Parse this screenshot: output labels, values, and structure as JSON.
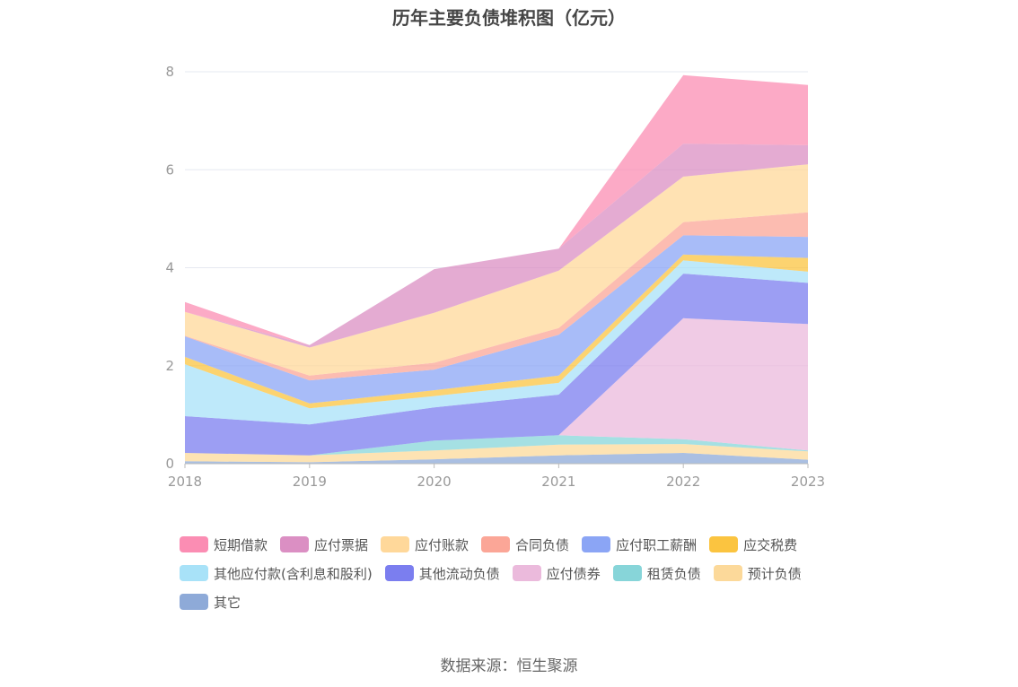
{
  "title": "历年主要负债堆积图（亿元）",
  "source": "数据来源：恒生聚源",
  "chart_data": {
    "type": "area",
    "stacked": true,
    "x": [
      "2018",
      "2019",
      "2020",
      "2021",
      "2022",
      "2023"
    ],
    "ylim": [
      0,
      8
    ],
    "yticks": [
      "0",
      "2",
      "4",
      "6",
      "8"
    ],
    "grid": true,
    "legend_position": "bottom",
    "series": [
      {
        "name": "其它",
        "color": "#8eaad8",
        "values": [
          0.05,
          0.03,
          0.09,
          0.17,
          0.22,
          0.08
        ]
      },
      {
        "name": "预计负债",
        "color": "#fcd99a",
        "values": [
          0.17,
          0.14,
          0.18,
          0.22,
          0.18,
          0.17
        ]
      },
      {
        "name": "租赁负债",
        "color": "#87d5d9",
        "values": [
          0.0,
          0.0,
          0.2,
          0.19,
          0.1,
          0.02
        ]
      },
      {
        "name": "应付债券",
        "color": "#ebbadc",
        "values": [
          0.0,
          0.0,
          0.0,
          0.0,
          2.47,
          2.58
        ]
      },
      {
        "name": "其他流动负债",
        "color": "#7b7eef",
        "values": [
          0.75,
          0.63,
          0.68,
          0.83,
          0.91,
          0.84
        ]
      },
      {
        "name": "其他应付款(含利息和股利)",
        "color": "#a8e2f8",
        "values": [
          1.06,
          0.33,
          0.23,
          0.24,
          0.27,
          0.23
        ]
      },
      {
        "name": "应交税费",
        "color": "#fbc440",
        "values": [
          0.15,
          0.1,
          0.12,
          0.15,
          0.12,
          0.28
        ]
      },
      {
        "name": "应付职工薪酬",
        "color": "#8ba5f5",
        "values": [
          0.42,
          0.47,
          0.42,
          0.83,
          0.39,
          0.43
        ]
      },
      {
        "name": "合同负债",
        "color": "#fba697",
        "values": [
          0.01,
          0.1,
          0.14,
          0.14,
          0.27,
          0.5
        ]
      },
      {
        "name": "应付账款",
        "color": "#ffd89a",
        "values": [
          0.49,
          0.57,
          1.02,
          1.17,
          0.93,
          0.98
        ]
      },
      {
        "name": "应付票据",
        "color": "#db8fc3",
        "values": [
          0.0,
          0.05,
          0.89,
          0.45,
          0.67,
          0.39
        ]
      },
      {
        "name": "短期借款",
        "color": "#fb8db3",
        "values": [
          0.2,
          0.0,
          0.0,
          0.0,
          1.4,
          1.23
        ]
      }
    ]
  },
  "legend_order": [
    {
      "name": "短期借款",
      "color": "#fb8db3"
    },
    {
      "name": "应付票据",
      "color": "#db8fc3"
    },
    {
      "name": "应付账款",
      "color": "#ffd89a"
    },
    {
      "name": "合同负债",
      "color": "#fba697"
    },
    {
      "name": "应付职工薪酬",
      "color": "#8ba5f5"
    },
    {
      "name": "应交税费",
      "color": "#fbc440"
    },
    {
      "name": "其他应付款(含利息和股利)",
      "color": "#a8e2f8"
    },
    {
      "name": "其他流动负债",
      "color": "#7b7eef"
    },
    {
      "name": "应付债券",
      "color": "#ebbadc"
    },
    {
      "name": "租赁负债",
      "color": "#87d5d9"
    },
    {
      "name": "预计负债",
      "color": "#fcd99a"
    },
    {
      "name": "其它",
      "color": "#8eaad8"
    }
  ]
}
